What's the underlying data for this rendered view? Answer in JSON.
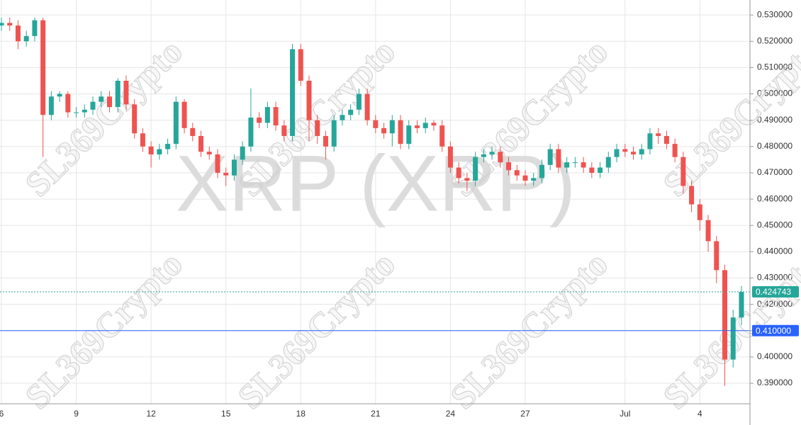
{
  "chart_data": {
    "type": "candlestick",
    "watermark": "XRP (XRP)",
    "brand_watermark": "SL369Crypto",
    "up_color": "#26a69a",
    "down_color": "#ef5350",
    "grid": true,
    "categories": [
      "6",
      null,
      null,
      null,
      null,
      null,
      null,
      null,
      null,
      "9",
      null,
      null,
      null,
      null,
      null,
      null,
      null,
      null,
      "12",
      null,
      null,
      null,
      null,
      null,
      null,
      null,
      null,
      "15",
      null,
      null,
      null,
      null,
      null,
      null,
      null,
      null,
      "18",
      null,
      null,
      null,
      null,
      null,
      null,
      null,
      null,
      "21",
      null,
      null,
      null,
      null,
      null,
      null,
      null,
      null,
      "24",
      null,
      null,
      null,
      null,
      null,
      null,
      null,
      null,
      "27",
      null,
      null,
      null,
      null,
      null,
      null,
      null,
      null,
      null,
      null,
      null,
      "Jul",
      null,
      null,
      null,
      null,
      null,
      null,
      null,
      null,
      "4",
      null,
      null,
      null,
      null,
      null
    ],
    "open": [
      0.526,
      0.527,
      0.526,
      0.52,
      0.522,
      0.528,
      0.492,
      0.499,
      0.5,
      0.493,
      0.493,
      0.494,
      0.497,
      0.499,
      0.495,
      0.505,
      0.496,
      0.485,
      0.48,
      0.477,
      0.479,
      0.481,
      0.497,
      0.487,
      0.484,
      0.478,
      0.477,
      0.47,
      0.469,
      0.475,
      0.48,
      0.491,
      0.489,
      0.495,
      0.488,
      0.484,
      0.517,
      0.505,
      0.49,
      0.484,
      0.48,
      0.49,
      0.492,
      0.494,
      0.5,
      0.49,
      0.487,
      0.485,
      0.49,
      0.481,
      0.488,
      0.487,
      0.489,
      0.488,
      0.48,
      0.472,
      0.468,
      0.467,
      0.476,
      0.477,
      0.478,
      0.474,
      0.471,
      0.469,
      0.467,
      0.468,
      0.473,
      0.479,
      0.472,
      0.474,
      0.474,
      0.472,
      0.47,
      0.472,
      0.476,
      0.479,
      0.478,
      0.477,
      0.479,
      0.485,
      0.484,
      0.481,
      0.476,
      0.465,
      0.458,
      0.452,
      0.444,
      0.433,
      0.399,
      0.415
    ],
    "high": [
      0.529,
      0.529,
      0.528,
      0.524,
      0.529,
      0.529,
      0.501,
      0.501,
      0.501,
      0.495,
      0.496,
      0.499,
      0.501,
      0.501,
      0.506,
      0.507,
      0.498,
      0.487,
      0.482,
      0.481,
      0.483,
      0.499,
      0.498,
      0.489,
      0.486,
      0.48,
      0.479,
      0.472,
      0.477,
      0.482,
      0.502,
      0.493,
      0.497,
      0.497,
      0.49,
      0.519,
      0.519,
      0.507,
      0.492,
      0.486,
      0.492,
      0.494,
      0.496,
      0.502,
      0.502,
      0.492,
      0.489,
      0.492,
      0.492,
      0.49,
      0.49,
      0.491,
      0.49,
      0.49,
      0.482,
      0.474,
      0.47,
      0.478,
      0.479,
      0.48,
      0.48,
      0.476,
      0.473,
      0.471,
      0.47,
      0.475,
      0.481,
      0.481,
      0.476,
      0.476,
      0.476,
      0.474,
      0.474,
      0.478,
      0.481,
      0.481,
      0.48,
      0.481,
      0.487,
      0.487,
      0.486,
      0.483,
      0.478,
      0.467,
      0.46,
      0.454,
      0.446,
      0.435,
      0.418,
      0.427
    ],
    "low": [
      0.524,
      0.524,
      0.517,
      0.518,
      0.52,
      0.476,
      0.49,
      0.497,
      0.491,
      0.491,
      0.491,
      0.492,
      0.495,
      0.493,
      0.493,
      0.494,
      0.483,
      0.478,
      0.472,
      0.475,
      0.477,
      0.479,
      0.485,
      0.482,
      0.476,
      0.475,
      0.468,
      0.465,
      0.467,
      0.473,
      0.478,
      0.487,
      0.487,
      0.486,
      0.482,
      0.482,
      0.503,
      0.482,
      0.481,
      0.475,
      0.478,
      0.488,
      0.49,
      0.492,
      0.488,
      0.485,
      0.483,
      0.48,
      0.479,
      0.479,
      0.485,
      0.485,
      0.486,
      0.478,
      0.47,
      0.466,
      0.463,
      0.465,
      0.474,
      0.475,
      0.472,
      0.469,
      0.467,
      0.465,
      0.465,
      0.466,
      0.471,
      0.47,
      0.47,
      0.472,
      0.47,
      0.468,
      0.468,
      0.47,
      0.474,
      0.476,
      0.475,
      0.475,
      0.477,
      0.481,
      0.479,
      0.474,
      0.462,
      0.455,
      0.448,
      0.44,
      0.428,
      0.389,
      0.396,
      0.412
    ],
    "close": [
      0.527,
      0.526,
      0.52,
      0.522,
      0.528,
      0.492,
      0.499,
      0.5,
      0.493,
      0.493,
      0.494,
      0.497,
      0.499,
      0.495,
      0.505,
      0.496,
      0.485,
      0.48,
      0.477,
      0.479,
      0.481,
      0.497,
      0.487,
      0.484,
      0.478,
      0.477,
      0.47,
      0.469,
      0.475,
      0.48,
      0.491,
      0.489,
      0.495,
      0.488,
      0.484,
      0.517,
      0.505,
      0.49,
      0.484,
      0.48,
      0.49,
      0.492,
      0.494,
      0.5,
      0.49,
      0.487,
      0.485,
      0.49,
      0.481,
      0.488,
      0.487,
      0.489,
      0.488,
      0.48,
      0.472,
      0.468,
      0.467,
      0.476,
      0.477,
      0.478,
      0.474,
      0.471,
      0.469,
      0.467,
      0.468,
      0.473,
      0.479,
      0.472,
      0.474,
      0.474,
      0.472,
      0.47,
      0.472,
      0.476,
      0.479,
      0.478,
      0.477,
      0.479,
      0.485,
      0.484,
      0.481,
      0.476,
      0.465,
      0.458,
      0.452,
      0.444,
      0.433,
      0.399,
      0.415,
      0.4247
    ],
    "ylim": [
      0.3822,
      0.5357
    ],
    "yticks": [
      {
        "value": 0.39,
        "label": "0.390000"
      },
      {
        "value": 0.4,
        "label": "0.400000"
      },
      {
        "value": 0.41,
        "label": "0.410000"
      },
      {
        "value": 0.42,
        "label": "0.420000"
      },
      {
        "value": 0.43,
        "label": "0.430000"
      },
      {
        "value": 0.44,
        "label": "0.440000"
      },
      {
        "value": 0.45,
        "label": "0.450000"
      },
      {
        "value": 0.46,
        "label": "0.460000"
      },
      {
        "value": 0.47,
        "label": "0.470000"
      },
      {
        "value": 0.48,
        "label": "0.480000"
      },
      {
        "value": 0.49,
        "label": "0.490000"
      },
      {
        "value": 0.5,
        "label": "0.500000"
      },
      {
        "value": 0.51,
        "label": "0.510000"
      },
      {
        "value": 0.52,
        "label": "0.520000"
      },
      {
        "value": 0.53,
        "label": "0.530000"
      }
    ],
    "price_lines": [
      {
        "value": 0.424743,
        "color": "#26a69a",
        "style": "dotted"
      },
      {
        "value": 0.41,
        "label": "0.410000",
        "color": "#2962ff",
        "style": "solid"
      }
    ]
  }
}
